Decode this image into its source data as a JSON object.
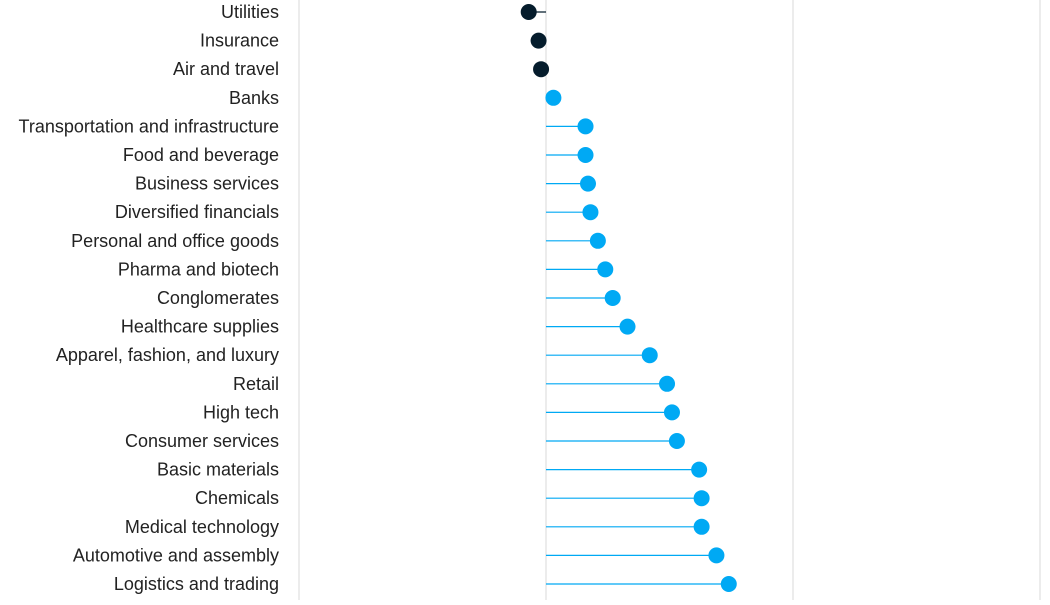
{
  "chart_data": {
    "type": "lollipop",
    "orientation": "horizontal",
    "title": "",
    "xlabel": "",
    "ylabel": "",
    "xlim": [
      -1,
      2
    ],
    "gridlines_x": [
      -1,
      0,
      1,
      2
    ],
    "grid": true,
    "colors": {
      "negative": "#051c2c",
      "positive": "#00a9f4",
      "grid": "#d9d9d9"
    },
    "categories": [
      "Utilities",
      "Insurance",
      "Air and travel",
      "Banks",
      "Transportation and infrastructure",
      "Food and beverage",
      "Business services",
      "Diversified financials",
      "Personal and office goods",
      "Pharma and biotech",
      "Conglomerates",
      "Healthcare supplies",
      "Apparel, fashion, and luxury",
      "Retail",
      "High tech",
      "Consumer services",
      "Basic materials",
      "Chemicals",
      "Medical technology",
      "Automotive and assembly",
      "Logistics and trading"
    ],
    "values": [
      -0.07,
      -0.03,
      -0.02,
      0.03,
      0.16,
      0.16,
      0.17,
      0.18,
      0.21,
      0.24,
      0.27,
      0.33,
      0.42,
      0.49,
      0.51,
      0.53,
      0.62,
      0.63,
      0.63,
      0.69,
      0.74
    ]
  }
}
